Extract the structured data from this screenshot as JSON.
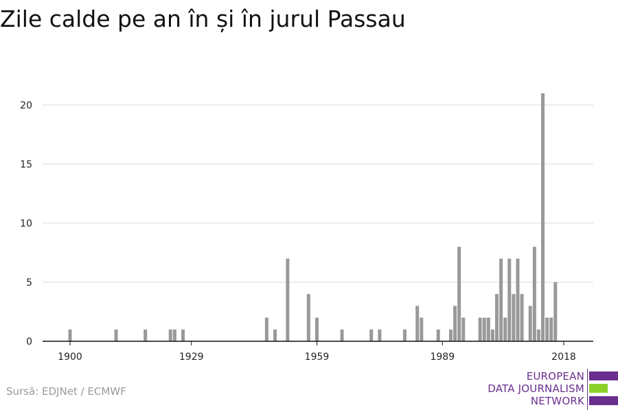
{
  "chart_data": {
    "type": "bar",
    "title": "Zile calde pe an în și în jurul Passau",
    "xlabel": "",
    "ylabel": "",
    "xlim": [
      1896,
      2024
    ],
    "ylim": [
      0,
      22
    ],
    "y_ticks": [
      0,
      5,
      10,
      15,
      20
    ],
    "x_ticks": [
      1900,
      1929,
      1959,
      1989,
      2018
    ],
    "grid": true,
    "bar_color": "#999999",
    "grid_color": "#d8d8d8",
    "axis_color": "#111111",
    "x": [
      1900,
      1911,
      1918,
      1924,
      1925,
      1927,
      1947,
      1949,
      1952,
      1957,
      1959,
      1965,
      1972,
      1974,
      1980,
      1983,
      1984,
      1988,
      1991,
      1992,
      1993,
      1994,
      1998,
      1999,
      2000,
      2001,
      2002,
      2003,
      2004,
      2005,
      2006,
      2007,
      2008,
      2010,
      2011,
      2012,
      2013,
      2014,
      2015,
      2016,
      2017,
      2018,
      2019
    ],
    "values": [
      1,
      1,
      1,
      1,
      1,
      1,
      2,
      1,
      7,
      4,
      2,
      1,
      1,
      1,
      1,
      3,
      2,
      1,
      1,
      3,
      8,
      2,
      2,
      2,
      2,
      1,
      4,
      7,
      2,
      7,
      4,
      7,
      4,
      3,
      8,
      1,
      21,
      2,
      2,
      5,
      0,
      0,
      0
    ]
  },
  "footer": {
    "source": "Sursă: EDJNet / ECMWF"
  },
  "logo": {
    "line1": "EUROPEAN",
    "line2": "DATA JOURNALISM",
    "line3": "NETWORK",
    "purple": "#6a2e8e",
    "green": "#8cd12b"
  }
}
